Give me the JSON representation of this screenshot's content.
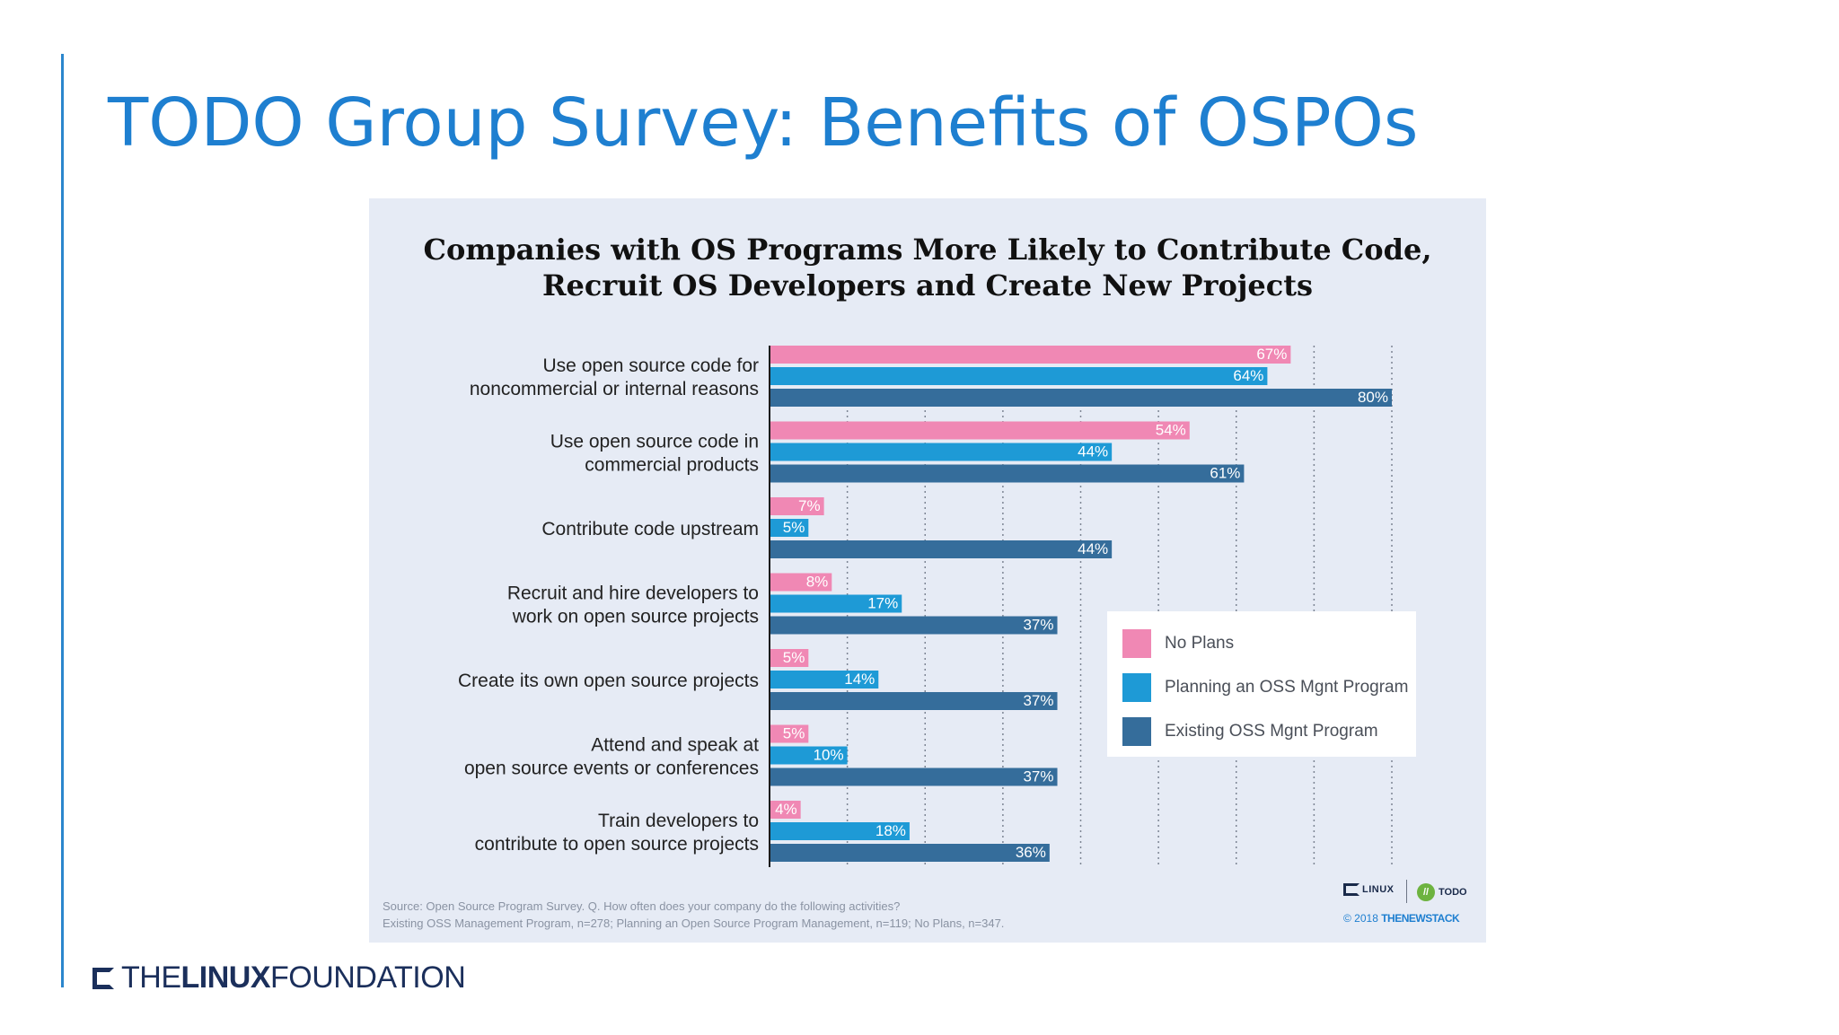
{
  "slide": {
    "title": "TODO Group Survey: Benefits of OSPOs",
    "footer_the": "THE",
    "footer_linux": "LINUX",
    "footer_foundation": "FOUNDATION"
  },
  "colors": {
    "title_blue": "#1e7fd0",
    "panel_bg": "#e6ebf5",
    "no_plans": "#f088b4",
    "planning": "#1e9ad6",
    "existing": "#356d9b"
  },
  "chart_data": {
    "type": "bar",
    "orientation": "horizontal",
    "title_line1": "Companies with OS Programs More Likely to Contribute Code,",
    "title_line2": "Recruit OS Developers and Create New Projects",
    "xlim": [
      0,
      80
    ],
    "value_suffix": "%",
    "grid": "vertical dotted",
    "legend_position": "right",
    "categories": [
      [
        "Use open source code for",
        "noncommercial or internal reasons"
      ],
      [
        "Use open source code in",
        "commercial products"
      ],
      [
        "Contribute code upstream"
      ],
      [
        "Recruit and hire developers to",
        "work on open source projects"
      ],
      [
        "Create its own open source projects"
      ],
      [
        "Attend and speak at",
        "open source events or conferences"
      ],
      [
        "Train developers to",
        "contribute to open source projects"
      ]
    ],
    "series": [
      {
        "name": "No Plans",
        "color": "#f088b4",
        "values": [
          67,
          54,
          7,
          8,
          5,
          5,
          4
        ]
      },
      {
        "name": "Planning an OSS Mgnt Program",
        "color": "#1e9ad6",
        "values": [
          64,
          44,
          5,
          17,
          14,
          10,
          18
        ]
      },
      {
        "name": "Existing OSS Mgnt Program",
        "color": "#356d9b",
        "values": [
          80,
          61,
          44,
          37,
          37,
          37,
          36
        ]
      }
    ],
    "source_line1": "Source: Open Source Program Survey. Q. How often does your company do the following activities?",
    "source_line2": "Existing OSS Management Program, n=278; Planning an Open Source Program Management, n=119; No Plans, n=347.",
    "credit": {
      "lf_logo": "LINUX",
      "todo_logo": "TODO",
      "todo_mark": "//",
      "copyright": "© 2018",
      "publisher": "THENEWSTACK"
    }
  }
}
